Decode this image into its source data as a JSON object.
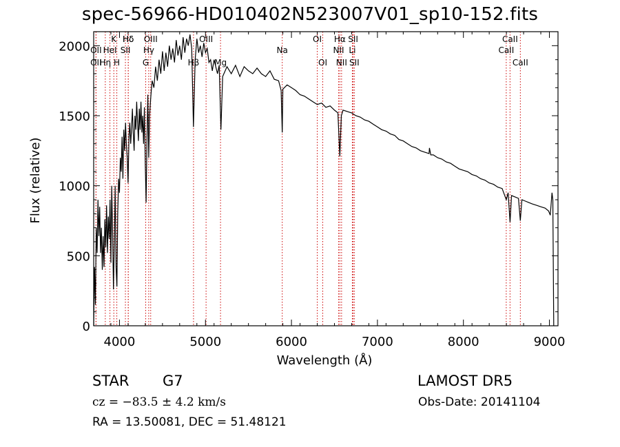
{
  "chart_data": {
    "type": "line",
    "title": "spec-56966-HD010402N523007V01_sp10-152.fits",
    "xlabel": "Wavelength (Å)",
    "ylabel": "Flux (relative)",
    "xlim": [
      3700,
      9100
    ],
    "ylim": [
      0,
      2100
    ],
    "x_ticks": [
      4000,
      5000,
      6000,
      7000,
      8000,
      9000
    ],
    "y_ticks": [
      0,
      500,
      1000,
      1500,
      2000
    ],
    "series": [
      {
        "points": [
          [
            3700,
            0
          ],
          [
            3710,
            420
          ],
          [
            3720,
            150
          ],
          [
            3730,
            700
          ],
          [
            3740,
            520
          ],
          [
            3750,
            900
          ],
          [
            3760,
            640
          ],
          [
            3770,
            850
          ],
          [
            3780,
            520
          ],
          [
            3790,
            700
          ],
          [
            3800,
            400
          ],
          [
            3810,
            640
          ],
          [
            3820,
            420
          ],
          [
            3830,
            760
          ],
          [
            3840,
            560
          ],
          [
            3850,
            860
          ],
          [
            3860,
            520
          ],
          [
            3870,
            780
          ],
          [
            3880,
            620
          ],
          [
            3890,
            900
          ],
          [
            3900,
            450
          ],
          [
            3910,
            1000
          ],
          [
            3920,
            650
          ],
          [
            3930,
            260
          ],
          [
            3940,
            600
          ],
          [
            3950,
            1000
          ],
          [
            3960,
            420
          ],
          [
            3970,
            280
          ],
          [
            3980,
            800
          ],
          [
            3990,
            1050
          ],
          [
            4000,
            950
          ],
          [
            4010,
            1200
          ],
          [
            4020,
            1100
          ],
          [
            4030,
            1350
          ],
          [
            4040,
            1050
          ],
          [
            4050,
            1400
          ],
          [
            4060,
            1250
          ],
          [
            4070,
            1450
          ],
          [
            4080,
            1300
          ],
          [
            4090,
            1200
          ],
          [
            4100,
            1020
          ],
          [
            4110,
            1350
          ],
          [
            4120,
            1450
          ],
          [
            4130,
            1300
          ],
          [
            4140,
            1400
          ],
          [
            4150,
            1550
          ],
          [
            4160,
            1380
          ],
          [
            4170,
            1250
          ],
          [
            4180,
            1500
          ],
          [
            4190,
            1400
          ],
          [
            4200,
            1600
          ],
          [
            4210,
            1450
          ],
          [
            4220,
            1320
          ],
          [
            4230,
            1550
          ],
          [
            4240,
            1400
          ],
          [
            4250,
            1600
          ],
          [
            4260,
            1380
          ],
          [
            4270,
            1500
          ],
          [
            4280,
            1300
          ],
          [
            4290,
            1560
          ],
          [
            4300,
            1150
          ],
          [
            4310,
            880
          ],
          [
            4320,
            1350
          ],
          [
            4330,
            1650
          ],
          [
            4340,
            1200
          ],
          [
            4350,
            1500
          ],
          [
            4360,
            1600
          ],
          [
            4370,
            1680
          ],
          [
            4380,
            1750
          ],
          [
            4400,
            1700
          ],
          [
            4420,
            1850
          ],
          [
            4440,
            1750
          ],
          [
            4460,
            1900
          ],
          [
            4480,
            1800
          ],
          [
            4500,
            1960
          ],
          [
            4520,
            1820
          ],
          [
            4540,
            1950
          ],
          [
            4560,
            1850
          ],
          [
            4580,
            2000
          ],
          [
            4600,
            1900
          ],
          [
            4620,
            1980
          ],
          [
            4640,
            1880
          ],
          [
            4660,
            2040
          ],
          [
            4680,
            1930
          ],
          [
            4700,
            2000
          ],
          [
            4720,
            1900
          ],
          [
            4740,
            2060
          ],
          [
            4760,
            1950
          ],
          [
            4780,
            2050
          ],
          [
            4800,
            2000
          ],
          [
            4820,
            2080
          ],
          [
            4840,
            1980
          ],
          [
            4860,
            1420
          ],
          [
            4880,
            1900
          ],
          [
            4900,
            2050
          ],
          [
            4920,
            1950
          ],
          [
            4940,
            2000
          ],
          [
            4960,
            1920
          ],
          [
            4980,
            2020
          ],
          [
            5000,
            1950
          ],
          [
            5020,
            1980
          ],
          [
            5040,
            1880
          ],
          [
            5060,
            1900
          ],
          [
            5080,
            1820
          ],
          [
            5100,
            1900
          ],
          [
            5120,
            1850
          ],
          [
            5140,
            1800
          ],
          [
            5160,
            1860
          ],
          [
            5180,
            1400
          ],
          [
            5200,
            1780
          ],
          [
            5250,
            1850
          ],
          [
            5300,
            1800
          ],
          [
            5350,
            1860
          ],
          [
            5400,
            1780
          ],
          [
            5450,
            1850
          ],
          [
            5500,
            1820
          ],
          [
            5550,
            1800
          ],
          [
            5600,
            1840
          ],
          [
            5650,
            1800
          ],
          [
            5700,
            1780
          ],
          [
            5750,
            1820
          ],
          [
            5800,
            1760
          ],
          [
            5850,
            1750
          ],
          [
            5880,
            1680
          ],
          [
            5893,
            1380
          ],
          [
            5900,
            1690
          ],
          [
            5950,
            1720
          ],
          [
            6000,
            1700
          ],
          [
            6050,
            1680
          ],
          [
            6100,
            1650
          ],
          [
            6150,
            1640
          ],
          [
            6200,
            1620
          ],
          [
            6250,
            1600
          ],
          [
            6300,
            1580
          ],
          [
            6350,
            1590
          ],
          [
            6400,
            1560
          ],
          [
            6450,
            1570
          ],
          [
            6500,
            1540
          ],
          [
            6540,
            1520
          ],
          [
            6563,
            1210
          ],
          [
            6580,
            1500
          ],
          [
            6600,
            1540
          ],
          [
            6650,
            1530
          ],
          [
            6700,
            1520
          ],
          [
            6750,
            1500
          ],
          [
            6800,
            1490
          ],
          [
            6850,
            1470
          ],
          [
            6900,
            1460
          ],
          [
            6950,
            1440
          ],
          [
            7000,
            1420
          ],
          [
            7050,
            1400
          ],
          [
            7100,
            1390
          ],
          [
            7150,
            1370
          ],
          [
            7200,
            1360
          ],
          [
            7250,
            1330
          ],
          [
            7300,
            1320
          ],
          [
            7350,
            1300
          ],
          [
            7400,
            1280
          ],
          [
            7450,
            1270
          ],
          [
            7500,
            1250
          ],
          [
            7550,
            1240
          ],
          [
            7600,
            1230
          ],
          [
            7605,
            1270
          ],
          [
            7620,
            1220
          ],
          [
            7650,
            1220
          ],
          [
            7700,
            1200
          ],
          [
            7750,
            1190
          ],
          [
            7800,
            1170
          ],
          [
            7850,
            1160
          ],
          [
            7900,
            1140
          ],
          [
            7950,
            1120
          ],
          [
            8000,
            1110
          ],
          [
            8050,
            1100
          ],
          [
            8100,
            1080
          ],
          [
            8150,
            1070
          ],
          [
            8200,
            1050
          ],
          [
            8250,
            1040
          ],
          [
            8300,
            1020
          ],
          [
            8350,
            1010
          ],
          [
            8400,
            990
          ],
          [
            8450,
            980
          ],
          [
            8498,
            900
          ],
          [
            8520,
            950
          ],
          [
            8542,
            740
          ],
          [
            8560,
            930
          ],
          [
            8600,
            920
          ],
          [
            8640,
            910
          ],
          [
            8662,
            750
          ],
          [
            8680,
            900
          ],
          [
            8720,
            890
          ],
          [
            8760,
            880
          ],
          [
            8800,
            870
          ],
          [
            8850,
            860
          ],
          [
            8900,
            850
          ],
          [
            8950,
            840
          ],
          [
            8990,
            820
          ],
          [
            9010,
            790
          ],
          [
            9030,
            950
          ],
          [
            9040,
            900
          ],
          [
            9050,
            0
          ]
        ]
      }
    ],
    "line_markers": [
      {
        "name": "Hδ",
        "wl": 4102,
        "row": 1
      },
      {
        "name": "OII",
        "wl": 3727,
        "row": 2
      },
      {
        "name": "OII",
        "wl": 3727,
        "row": 3
      },
      {
        "name": "Hη",
        "wl": 3835,
        "row": 3
      },
      {
        "name": "K",
        "wl": 3934,
        "row": 1
      },
      {
        "name": "HeI",
        "wl": 3889,
        "row": 2
      },
      {
        "name": "H",
        "wl": 3969,
        "row": 3
      },
      {
        "name": "Hδ",
        "wl": 4102,
        "row": 1
      },
      {
        "name": "SII",
        "wl": 4069,
        "row": 2
      },
      {
        "name": "OIII",
        "wl": 4363,
        "row": 1
      },
      {
        "name": "Hγ",
        "wl": 4340,
        "row": 2
      },
      {
        "name": "G",
        "wl": 4305,
        "row": 3
      },
      {
        "name": "Hβ",
        "wl": 4861,
        "row": 3
      },
      {
        "name": "OIII",
        "wl": 5007,
        "row": 1
      },
      {
        "name": "Mg",
        "wl": 5175,
        "row": 3
      },
      {
        "name": "Na",
        "wl": 5893,
        "row": 2
      },
      {
        "name": "OI",
        "wl": 6300,
        "row": 1
      },
      {
        "name": "OI",
        "wl": 6364,
        "row": 3
      },
      {
        "name": "Hα",
        "wl": 6563,
        "row": 1
      },
      {
        "name": "NII",
        "wl": 6548,
        "row": 2
      },
      {
        "name": "NII",
        "wl": 6583,
        "row": 3
      },
      {
        "name": "SII",
        "wl": 6717,
        "row": 1
      },
      {
        "name": "Li",
        "wl": 6708,
        "row": 2
      },
      {
        "name": "SII",
        "wl": 6731,
        "row": 3
      },
      {
        "name": "CaII",
        "wl": 8542,
        "row": 1
      },
      {
        "name": "CaII",
        "wl": 8498,
        "row": 2
      },
      {
        "name": "CaII",
        "wl": 8662,
        "row": 3
      }
    ],
    "grid": false,
    "line_color": "#000000",
    "marker_color": "#cc0000"
  },
  "footer": {
    "star_type": "STAR",
    "subclass": "G7",
    "survey": "LAMOST  DR5",
    "cz": "cz = −83.5 ± 4.2 km/s",
    "obs_date": "Obs-Date: 20141104",
    "coords": "RA =  13.50081, DEC =  51.48121"
  }
}
